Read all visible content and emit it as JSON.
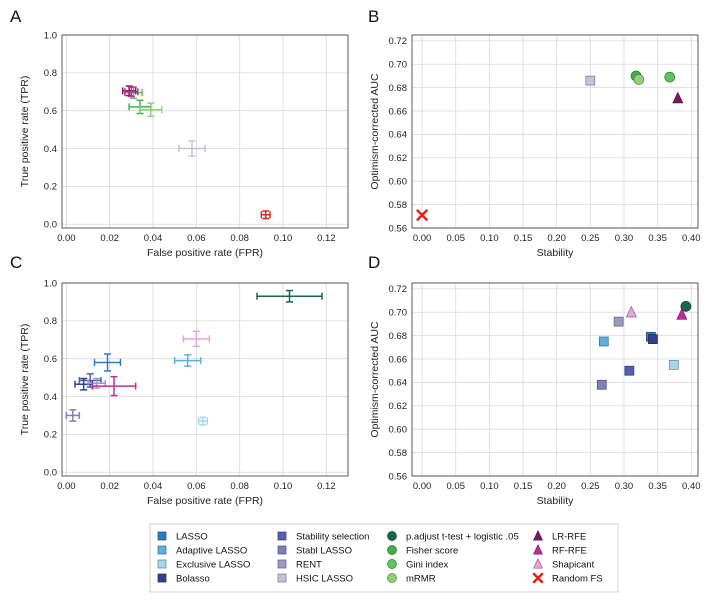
{
  "panels": [
    {
      "letter": "A",
      "type": "errorbar_scatter",
      "xlabel": "False positive rate (FPR)",
      "ylabel": "True positive rate (TPR)",
      "xlim": [
        -0.002,
        0.13
      ],
      "ylim": [
        -0.02,
        1.0
      ],
      "xticks": [
        0.0,
        0.02,
        0.04,
        0.06,
        0.08,
        0.1,
        0.12
      ],
      "yticks": [
        0.0,
        0.2,
        0.4,
        0.6,
        0.8,
        1.0
      ],
      "xtick_labels": [
        "0.00",
        "0.02",
        "0.04",
        "0.06",
        "0.08",
        "0.10",
        "0.12"
      ],
      "ytick_labels": [
        "0.0",
        "0.2",
        "0.4",
        "0.6",
        "0.8",
        "1.0"
      ],
      "points": [
        {
          "method": "Fisher score",
          "x": 0.034,
          "y": 0.62,
          "xerr": 0.005,
          "yerr": 0.035
        },
        {
          "method": "mRMR",
          "x": 0.039,
          "y": 0.605,
          "xerr": 0.005,
          "yerr": 0.035
        },
        {
          "method": "Gini index",
          "x": 0.031,
          "y": 0.695,
          "xerr": 0.004,
          "yerr": 0.03
        },
        {
          "method": "HSIC LASSO",
          "x": 0.058,
          "y": 0.4,
          "xerr": 0.006,
          "yerr": 0.04
        },
        {
          "method": "LR-RFE",
          "x": 0.029,
          "y": 0.705,
          "xerr": 0.003,
          "yerr": 0.025
        },
        {
          "method": "RF-RFE",
          "x": 0.03,
          "y": 0.7,
          "xerr": 0.003,
          "yerr": 0.025
        },
        {
          "method": "Random FS",
          "x": 0.092,
          "y": 0.05,
          "xerr": 0.002,
          "yerr": 0.02
        }
      ]
    },
    {
      "letter": "B",
      "type": "marker_scatter",
      "xlabel": "Stability",
      "ylabel": "Optimism-corrected AUC",
      "xlim": [
        -0.015,
        0.41
      ],
      "ylim": [
        0.56,
        0.725
      ],
      "xticks": [
        0.0,
        0.05,
        0.1,
        0.15,
        0.2,
        0.25,
        0.3,
        0.35,
        0.4
      ],
      "yticks": [
        0.56,
        0.58,
        0.6,
        0.62,
        0.64,
        0.66,
        0.68,
        0.7,
        0.72
      ],
      "xtick_labels": [
        "0.00",
        "0.05",
        "0.10",
        "0.15",
        "0.20",
        "0.25",
        "0.30",
        "0.35",
        "0.40"
      ],
      "ytick_labels": [
        "0.56",
        "0.58",
        "0.60",
        "0.62",
        "0.64",
        "0.66",
        "0.68",
        "0.70",
        "0.72"
      ],
      "points": [
        {
          "method": "Random FS",
          "x": 0.0,
          "y": 0.571
        },
        {
          "method": "HSIC LASSO",
          "x": 0.25,
          "y": 0.686
        },
        {
          "method": "Fisher score",
          "x": 0.318,
          "y": 0.69
        },
        {
          "method": "mRMR",
          "x": 0.322,
          "y": 0.687
        },
        {
          "method": "Gini index",
          "x": 0.368,
          "y": 0.689
        },
        {
          "method": "LR-RFE",
          "x": 0.38,
          "y": 0.671
        }
      ]
    },
    {
      "letter": "C",
      "type": "errorbar_scatter",
      "xlabel": "False positive rate (FPR)",
      "ylabel": "True positive rate (TPR)",
      "xlim": [
        -0.002,
        0.13
      ],
      "ylim": [
        -0.02,
        1.0
      ],
      "xticks": [
        0.0,
        0.02,
        0.04,
        0.06,
        0.08,
        0.1,
        0.12
      ],
      "yticks": [
        0.0,
        0.2,
        0.4,
        0.6,
        0.8,
        1.0
      ],
      "xtick_labels": [
        "0.00",
        "0.02",
        "0.04",
        "0.06",
        "0.08",
        "0.10",
        "0.12"
      ],
      "ytick_labels": [
        "0.0",
        "0.2",
        "0.4",
        "0.6",
        "0.8",
        "1.0"
      ],
      "points": [
        {
          "method": "p.adjust t-test + logistic .05",
          "x": 0.103,
          "y": 0.93,
          "xerr": 0.015,
          "yerr": 0.03
        },
        {
          "method": "Shapicant",
          "x": 0.06,
          "y": 0.705,
          "xerr": 0.006,
          "yerr": 0.04
        },
        {
          "method": "Adaptive LASSO",
          "x": 0.056,
          "y": 0.59,
          "xerr": 0.006,
          "yerr": 0.03
        },
        {
          "method": "Exclusive LASSO",
          "x": 0.063,
          "y": 0.27,
          "xerr": 0.002,
          "yerr": 0.02
        },
        {
          "method": "LASSO",
          "x": 0.019,
          "y": 0.58,
          "xerr": 0.006,
          "yerr": 0.045
        },
        {
          "method": "Stability selection",
          "x": 0.011,
          "y": 0.485,
          "xerr": 0.005,
          "yerr": 0.035
        },
        {
          "method": "Bolasso",
          "x": 0.008,
          "y": 0.465,
          "xerr": 0.004,
          "yerr": 0.03
        },
        {
          "method": "RENT",
          "x": 0.014,
          "y": 0.47,
          "xerr": 0.004,
          "yerr": 0.025
        },
        {
          "method": "RF-RFE",
          "x": 0.022,
          "y": 0.455,
          "xerr": 0.01,
          "yerr": 0.05
        },
        {
          "method": "Stabl LASSO",
          "x": 0.003,
          "y": 0.3,
          "xerr": 0.003,
          "yerr": 0.03
        }
      ]
    },
    {
      "letter": "D",
      "type": "marker_scatter",
      "xlabel": "Stability",
      "ylabel": "Optimism-corrected AUC",
      "xlim": [
        -0.015,
        0.41
      ],
      "ylim": [
        0.56,
        0.725
      ],
      "xticks": [
        0.0,
        0.05,
        0.1,
        0.15,
        0.2,
        0.25,
        0.3,
        0.35,
        0.4
      ],
      "yticks": [
        0.56,
        0.58,
        0.6,
        0.62,
        0.64,
        0.66,
        0.68,
        0.7,
        0.72
      ],
      "xtick_labels": [
        "0.00",
        "0.05",
        "0.10",
        "0.15",
        "0.20",
        "0.25",
        "0.30",
        "0.35",
        "0.40"
      ],
      "ytick_labels": [
        "0.56",
        "0.58",
        "0.60",
        "0.62",
        "0.64",
        "0.66",
        "0.68",
        "0.70",
        "0.72"
      ],
      "points": [
        {
          "method": "p.adjust t-test + logistic .05",
          "x": 0.392,
          "y": 0.705
        },
        {
          "method": "RF-RFE",
          "x": 0.386,
          "y": 0.698
        },
        {
          "method": "Shapicant",
          "x": 0.311,
          "y": 0.7
        },
        {
          "method": "RENT",
          "x": 0.292,
          "y": 0.692
        },
        {
          "method": "Adaptive LASSO",
          "x": 0.27,
          "y": 0.675
        },
        {
          "method": "LASSO",
          "x": 0.34,
          "y": 0.679
        },
        {
          "method": "Bolasso",
          "x": 0.343,
          "y": 0.677
        },
        {
          "method": "Stability selection",
          "x": 0.308,
          "y": 0.65
        },
        {
          "method": "Exclusive LASSO",
          "x": 0.374,
          "y": 0.655
        },
        {
          "method": "Stabl LASSO",
          "x": 0.267,
          "y": 0.638
        }
      ]
    }
  ],
  "legend": [
    {
      "label": "LASSO",
      "marker": "square",
      "color": "#2b7fc0",
      "col": 0,
      "row": 0
    },
    {
      "label": "Adaptive LASSO",
      "marker": "square",
      "color": "#5bb0dd",
      "col": 0,
      "row": 1
    },
    {
      "label": "Exclusive LASSO",
      "marker": "square",
      "color": "#a6d6ee",
      "col": 0,
      "row": 2
    },
    {
      "label": "Bolasso",
      "marker": "square",
      "color": "#33408f",
      "col": 0,
      "row": 3
    },
    {
      "label": "Stability selection",
      "marker": "square",
      "color": "#5560b5",
      "col": 1,
      "row": 0
    },
    {
      "label": "Stabl LASSO",
      "marker": "square",
      "color": "#7b82b8",
      "col": 1,
      "row": 1
    },
    {
      "label": "RENT",
      "marker": "square",
      "color": "#9a9cc4",
      "col": 1,
      "row": 2
    },
    {
      "label": "HSIC LASSO",
      "marker": "square",
      "color": "#c2c3da",
      "col": 1,
      "row": 3
    },
    {
      "label": "p.adjust t-test + logistic .05",
      "marker": "circle",
      "color": "#17664f",
      "col": 2,
      "row": 0
    },
    {
      "label": "Fisher score",
      "marker": "circle",
      "color": "#3fb24a",
      "col": 2,
      "row": 1
    },
    {
      "label": "Gini index",
      "marker": "circle",
      "color": "#5ec65e",
      "col": 2,
      "row": 2
    },
    {
      "label": "mRMR",
      "marker": "circle",
      "color": "#8fd17a",
      "col": 2,
      "row": 3
    },
    {
      "label": "LR-RFE",
      "marker": "triangle",
      "color": "#7c1a60",
      "col": 3,
      "row": 0
    },
    {
      "label": "RF-RFE",
      "marker": "triangle",
      "color": "#c42aa0",
      "col": 3,
      "row": 1
    },
    {
      "label": "Shapicant",
      "marker": "triangle",
      "color": "#e8a3df",
      "col": 3,
      "row": 2
    },
    {
      "label": "Random FS",
      "marker": "cross",
      "color": "#e0241b",
      "col": 3,
      "row": 3
    }
  ]
}
